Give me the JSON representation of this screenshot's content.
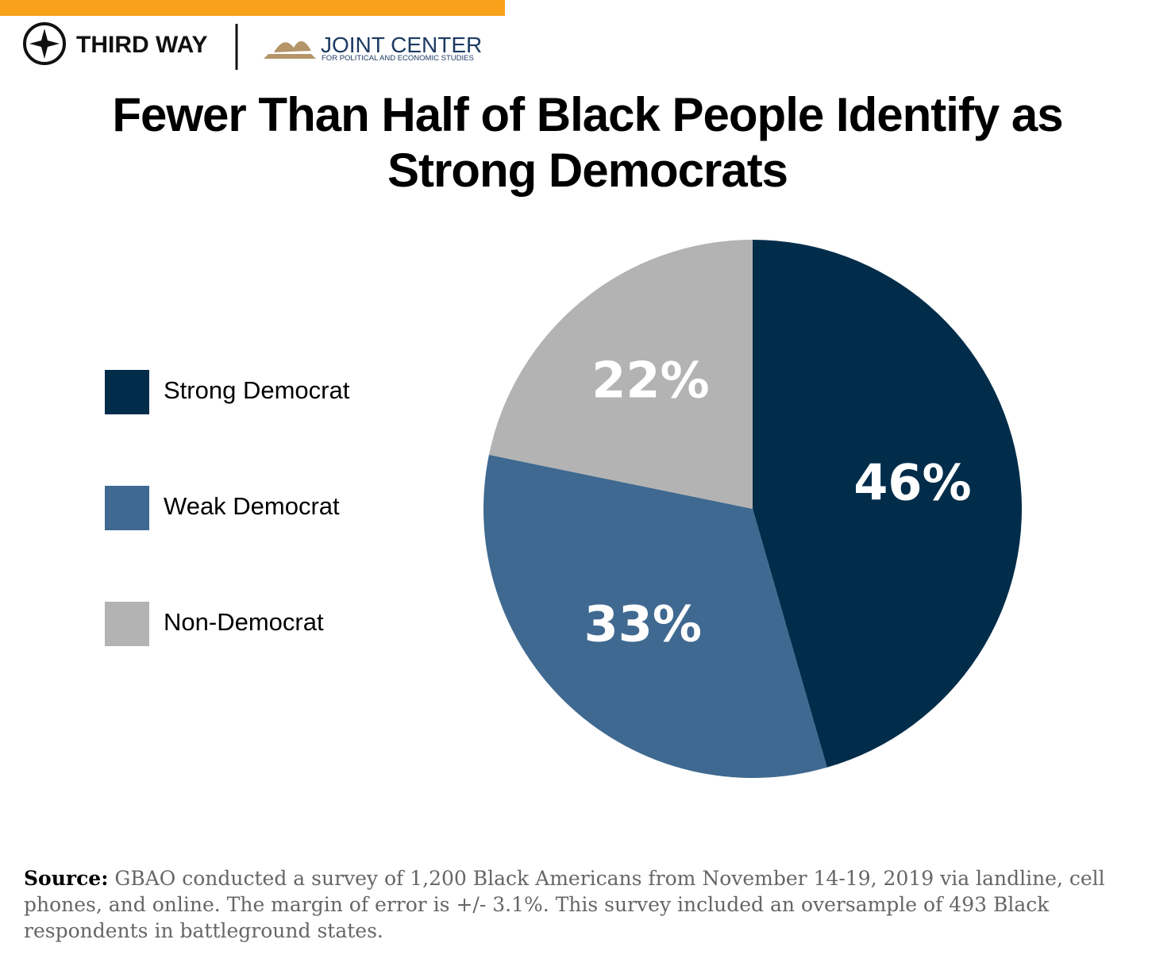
{
  "header": {
    "brand": "THIRD WAY",
    "partner": "JOINT CENTER",
    "partner_subtitle": "FOR POLITICAL AND ECONOMIC STUDIES"
  },
  "chart_data": {
    "type": "pie",
    "title": "Fewer Than Half of Black People Identify as Strong Democrats",
    "categories": [
      "Strong Democrat",
      "Weak Democrat",
      "Non-Democrat"
    ],
    "values": [
      46,
      33,
      22
    ],
    "value_labels": [
      "46%",
      "33%",
      "22%"
    ],
    "colors": [
      "#022d4a",
      "#3f6990",
      "#b3b3b3"
    ]
  },
  "source": {
    "label": "Source:",
    "text": "GBAO conducted a survey of 1,200 Black Americans from November 14-19, 2019 via landline, cell phones, and online. The margin of error is +/- 3.1%. This survey included an oversample of 493 Black respondents in battleground states."
  }
}
